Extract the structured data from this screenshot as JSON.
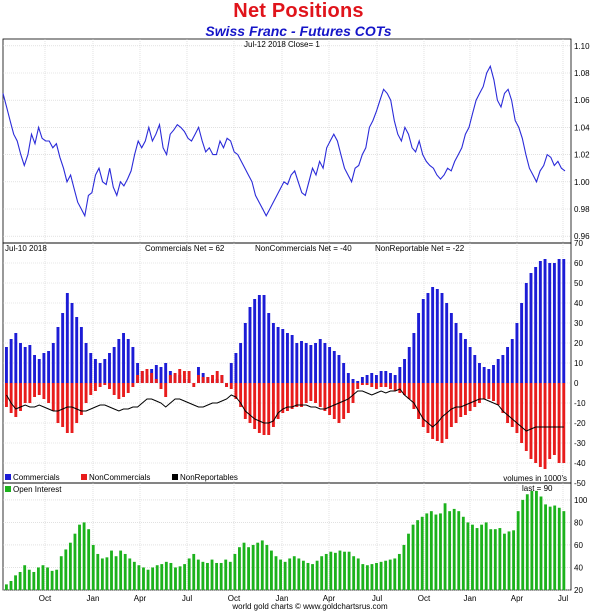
{
  "title": "Net Positions",
  "subtitle": "Swiss Franc - Futures COTs",
  "footer": "world gold charts © www.goldchartsrus.com",
  "colors": {
    "price_line": "#2b2bd9",
    "commercials": "#1c1cd6",
    "noncommercials": "#e81c1c",
    "nonreportables": "#000000",
    "open_interest": "#1cb21c",
    "title": "#e0141b",
    "subtitle": "#1515c8"
  },
  "chart_data": [
    {
      "panel": "price",
      "type": "line",
      "header": "Jul-12  2018   Close= 1",
      "x_tick_labels": [
        "Oct",
        "Jan",
        "Apr",
        "Jul",
        "Oct",
        "Jan",
        "Apr",
        "Jul",
        "Oct",
        "Jan",
        "Apr",
        "Jul"
      ],
      "y_tick_labels": [
        "0.96",
        "0.98",
        "1.00",
        "1.02",
        "1.04",
        "1.06",
        "1.08",
        "1.10"
      ],
      "ylim": [
        0.955,
        1.105
      ],
      "grid": true,
      "series": [
        {
          "values": [
            1.065,
            1.055,
            1.045,
            1.035,
            1.03,
            1.02,
            1.012,
            1.02,
            1.035,
            1.028,
            1.04,
            1.032,
            1.03,
            1.03,
            1.025,
            1.028,
            1.018,
            1.01,
            1.0,
            1.005,
            0.995,
            0.985,
            0.98,
            0.975,
            0.99,
            0.992,
            1.005,
            1.01,
            1.0,
            0.998,
            1.01,
            0.996,
            0.99,
            1.0,
            0.997,
            1.002,
            1.008,
            1.02,
            1.03,
            1.025,
            1.03,
            1.04,
            1.03,
            1.035,
            1.042,
            1.025,
            1.02,
            1.035,
            1.038,
            1.042,
            1.04,
            1.037,
            1.032,
            1.03,
            1.035,
            1.04,
            1.03,
            1.022,
            1.025,
            1.02,
            1.02,
            1.03,
            1.025,
            1.032,
            1.03,
            1.022,
            1.02,
            1.015,
            1.01,
            1.005,
            1.0,
            0.99,
            0.985,
            0.98,
            0.975,
            0.98,
            0.985,
            0.99,
            0.995,
            1.0,
            0.998,
            1.005,
            1.008,
            1.0,
            0.992,
            0.99,
            1.0,
            1.01,
            1.005,
            1.015,
            1.01,
            1.025,
            1.03,
            1.035,
            1.03,
            1.02,
            1.01,
            1.005,
            1.0,
            1.01,
            1.012,
            1.02,
            1.025,
            1.04,
            1.045,
            1.052,
            1.06,
            1.068,
            1.065,
            1.06,
            1.045,
            1.035,
            1.03,
            1.04,
            1.035,
            1.025,
            1.022,
            1.03,
            1.02,
            1.015,
            1.012,
            1.01,
            1.005,
            1.002,
            1.005,
            1.01,
            1.008,
            1.015,
            1.02,
            1.025,
            1.035,
            1.04,
            1.05,
            1.06,
            1.065,
            1.07,
            1.08,
            1.085,
            1.075,
            1.06,
            1.055,
            1.065,
            1.068,
            1.06,
            1.045,
            1.04,
            1.032,
            1.02,
            1.01,
            1.005,
            1.0,
            1.008,
            1.012,
            1.02,
            1.018,
            1.012,
            1.015,
            1.01,
            1.008
          ]
        }
      ]
    },
    {
      "panel": "net_positions",
      "type": "bar",
      "header": "Jul-10  2018",
      "series_labels": [
        "Commercials Net = 62",
        "NonCommercials Net = -40",
        "NonReportable Net = -22"
      ],
      "legend": [
        "Commercials",
        "NonCommercials",
        "NonReportables"
      ],
      "legend_position": "bottom-left",
      "units_note": "volumes in 1000's",
      "x_tick_labels": [
        "Oct",
        "Jan",
        "Apr",
        "Jul",
        "Oct",
        "Jan",
        "Apr",
        "Jul",
        "Oct",
        "Jan",
        "Apr",
        "Jul"
      ],
      "y_tick_labels": [
        "-50",
        "-40",
        "-30",
        "-20",
        "-10",
        "0",
        "10",
        "20",
        "30",
        "40",
        "50",
        "60",
        "70"
      ],
      "ylim": [
        -50,
        70
      ],
      "grid": true,
      "series": [
        {
          "name": "Commercials",
          "values": [
            18,
            22,
            25,
            20,
            18,
            19,
            14,
            12,
            15,
            16,
            20,
            28,
            35,
            45,
            40,
            33,
            28,
            20,
            15,
            12,
            10,
            12,
            15,
            18,
            22,
            25,
            22,
            18,
            10,
            6,
            4,
            7,
            9,
            8,
            10,
            6,
            4,
            4,
            2,
            2,
            0,
            8,
            5,
            3,
            2,
            2,
            4,
            -2,
            10,
            15,
            20,
            30,
            38,
            42,
            44,
            44,
            35,
            30,
            28,
            27,
            25,
            24,
            20,
            21,
            20,
            19,
            20,
            22,
            20,
            18,
            16,
            14,
            10,
            5,
            2,
            1,
            3,
            4,
            5,
            4,
            6,
            6,
            5,
            4,
            8,
            12,
            18,
            25,
            35,
            42,
            45,
            48,
            47,
            45,
            40,
            35,
            30,
            25,
            22,
            18,
            14,
            10,
            8,
            7,
            9,
            12,
            14,
            18,
            22,
            30,
            40,
            50,
            55,
            58,
            61,
            62,
            60,
            60,
            62,
            62
          ]
        },
        {
          "name": "NonCommercials",
          "values": [
            -12,
            -15,
            -17,
            -14,
            -10,
            -10,
            -7,
            -6,
            -8,
            -10,
            -14,
            -20,
            -22,
            -25,
            -25,
            -20,
            -16,
            -10,
            -6,
            -4,
            -2,
            -1,
            -3,
            -6,
            -8,
            -7,
            -5,
            -2,
            4,
            6,
            7,
            5,
            2,
            -3,
            -7,
            4,
            5,
            7,
            6,
            6,
            -2,
            4,
            3,
            3,
            4,
            6,
            4,
            -2,
            -3,
            -8,
            -12,
            -18,
            -20,
            -23,
            -25,
            -26,
            -26,
            -22,
            -18,
            -15,
            -14,
            -13,
            -12,
            -12,
            -10,
            -9,
            -10,
            -12,
            -14,
            -16,
            -18,
            -20,
            -18,
            -15,
            -10,
            -3,
            -1,
            -1,
            -2,
            -3,
            -2,
            -2,
            -3,
            -4,
            -5,
            -6,
            -8,
            -13,
            -18,
            -22,
            -25,
            -28,
            -29,
            -30,
            -28,
            -22,
            -20,
            -17,
            -16,
            -14,
            -12,
            -10,
            -8,
            -8,
            -9,
            -11,
            -15,
            -20,
            -22,
            -25,
            -30,
            -34,
            -38,
            -40,
            -42,
            -43,
            -38,
            -36,
            -40,
            -40
          ]
        },
        {
          "name": "NonReportables",
          "values": [
            -6,
            -10,
            -13,
            -12,
            -11,
            -12,
            -12,
            -11,
            -12,
            -13,
            -14,
            -14,
            -13,
            -12,
            -12,
            -13,
            -14,
            -14,
            -13,
            -12,
            -11,
            -11,
            -12,
            -13,
            -14,
            -13,
            -13,
            -12,
            -12,
            -10,
            -8,
            -8,
            -9,
            -10,
            -12,
            -10,
            -8,
            -8,
            -9,
            -10,
            -11,
            -12,
            -12,
            -11,
            -10,
            -10,
            -9,
            -8,
            -6,
            -7,
            -10,
            -14,
            -16,
            -18,
            -19,
            -20,
            -20,
            -19,
            -15,
            -13,
            -12,
            -12,
            -11,
            -11,
            -11,
            -12,
            -12,
            -13,
            -13,
            -12,
            -11,
            -10,
            -9,
            -8,
            -6,
            -4,
            -4,
            -5,
            -6,
            -5,
            -4,
            -5,
            -4,
            -4,
            -3,
            -6,
            -8,
            -10,
            -14,
            -18,
            -20,
            -22,
            -20,
            -17,
            -15,
            -13,
            -12,
            -12,
            -11,
            -10,
            -9,
            -8,
            -8,
            -9,
            -10,
            -11,
            -14,
            -16,
            -18,
            -20,
            -22,
            -24,
            -23,
            -22,
            -22,
            -22,
            -22,
            -22,
            -22,
            -22
          ]
        }
      ]
    },
    {
      "panel": "open_interest",
      "type": "bar",
      "legend": [
        "Open Interest"
      ],
      "legend_position": "top-left",
      "last_label": "last = 90",
      "x_tick_labels": [
        "Oct",
        "Jan",
        "Apr",
        "Jul",
        "Oct",
        "Jan",
        "Apr",
        "Jul",
        "Oct",
        "Jan",
        "Apr",
        "Jul"
      ],
      "y_tick_labels": [
        "20",
        "40",
        "60",
        "80",
        "100"
      ],
      "ylim": [
        20,
        115
      ],
      "grid": true,
      "series": [
        {
          "name": "Open Interest",
          "values": [
            25,
            28,
            33,
            36,
            42,
            38,
            36,
            40,
            42,
            40,
            37,
            38,
            50,
            56,
            62,
            70,
            78,
            80,
            74,
            60,
            52,
            48,
            49,
            55,
            50,
            55,
            52,
            48,
            45,
            42,
            40,
            38,
            40,
            42,
            43,
            45,
            44,
            40,
            41,
            43,
            48,
            52,
            47,
            45,
            44,
            47,
            44,
            44,
            47,
            45,
            52,
            58,
            62,
            58,
            60,
            62,
            64,
            60,
            55,
            50,
            47,
            45,
            48,
            50,
            48,
            46,
            44,
            43,
            46,
            50,
            52,
            54,
            53,
            55,
            54,
            54,
            50,
            48,
            43,
            42,
            43,
            44,
            45,
            46,
            47,
            48,
            52,
            60,
            70,
            78,
            82,
            85,
            88,
            90,
            87,
            88,
            97,
            90,
            92,
            90,
            85,
            80,
            78,
            75,
            78,
            80,
            74,
            74,
            75,
            70,
            72,
            73,
            90,
            100,
            105,
            108,
            108,
            103,
            96,
            94,
            95,
            93,
            90
          ]
        }
      ]
    }
  ]
}
